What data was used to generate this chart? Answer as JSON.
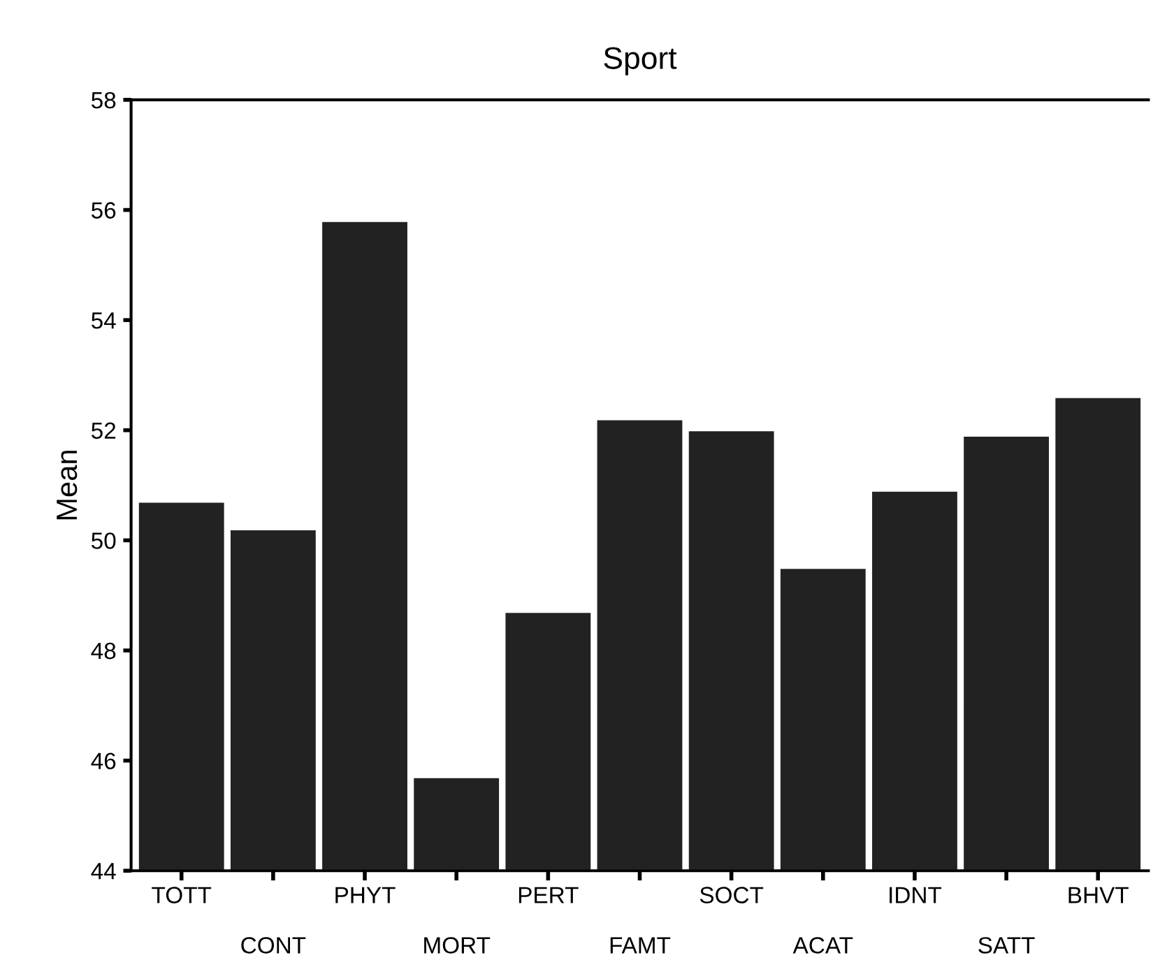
{
  "chart_data": {
    "type": "bar",
    "title": "Sport",
    "ylabel": "Mean",
    "categories": [
      "TOTT",
      "CONT",
      "PHYT",
      "MORT",
      "PERT",
      "FAMT",
      "SOCT",
      "ACAT",
      "IDNT",
      "SATT",
      "BHVT"
    ],
    "values": [
      50.7,
      50.2,
      55.8,
      45.7,
      48.7,
      52.2,
      52.0,
      49.5,
      50.9,
      51.9,
      52.6
    ],
    "color": "#222222",
    "ylim": [
      44,
      58
    ],
    "yticks": [
      44,
      46,
      48,
      50,
      52,
      54,
      56,
      58
    ],
    "grid": false
  }
}
